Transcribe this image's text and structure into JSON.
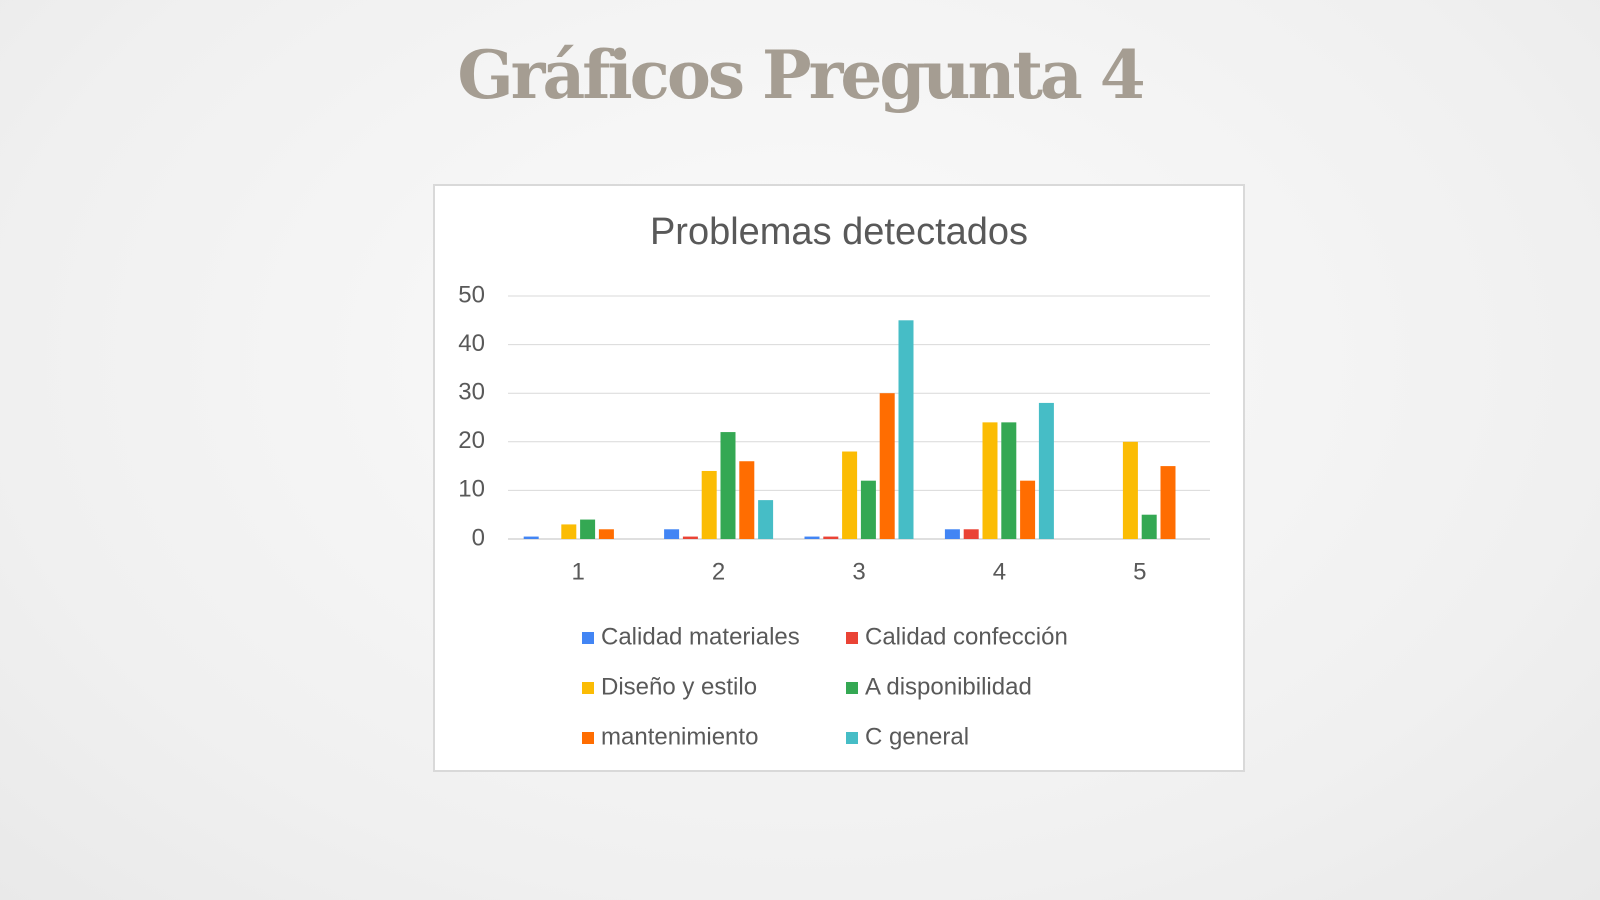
{
  "page_title": "Gráficos Pregunta 4",
  "chart_data": {
    "type": "bar",
    "title": "Problemas detectados",
    "categories": [
      "1",
      "2",
      "3",
      "4",
      "5"
    ],
    "series": [
      {
        "name": "Calidad materiales",
        "color": "#4285f4",
        "values": [
          0.5,
          2,
          0.5,
          2,
          0
        ]
      },
      {
        "name": "Calidad confección",
        "color": "#ea4335",
        "values": [
          0,
          0.5,
          0.5,
          2,
          0
        ]
      },
      {
        "name": "Diseño y estilo",
        "color": "#fbbc04",
        "values": [
          3,
          14,
          18,
          24,
          20
        ]
      },
      {
        "name": "A disponibilidad",
        "color": "#34a853",
        "values": [
          4,
          22,
          12,
          24,
          5
        ]
      },
      {
        "name": "mantenimiento",
        "color": "#ff6d01",
        "values": [
          2,
          16,
          30,
          12,
          15
        ]
      },
      {
        "name": "C general",
        "color": "#46bdc6",
        "values": [
          0,
          8,
          45,
          28,
          0
        ]
      }
    ],
    "ylim": [
      0,
      50
    ],
    "yticks": [
      0,
      10,
      20,
      30,
      40,
      50
    ],
    "grid": true,
    "legend": "bottom"
  }
}
